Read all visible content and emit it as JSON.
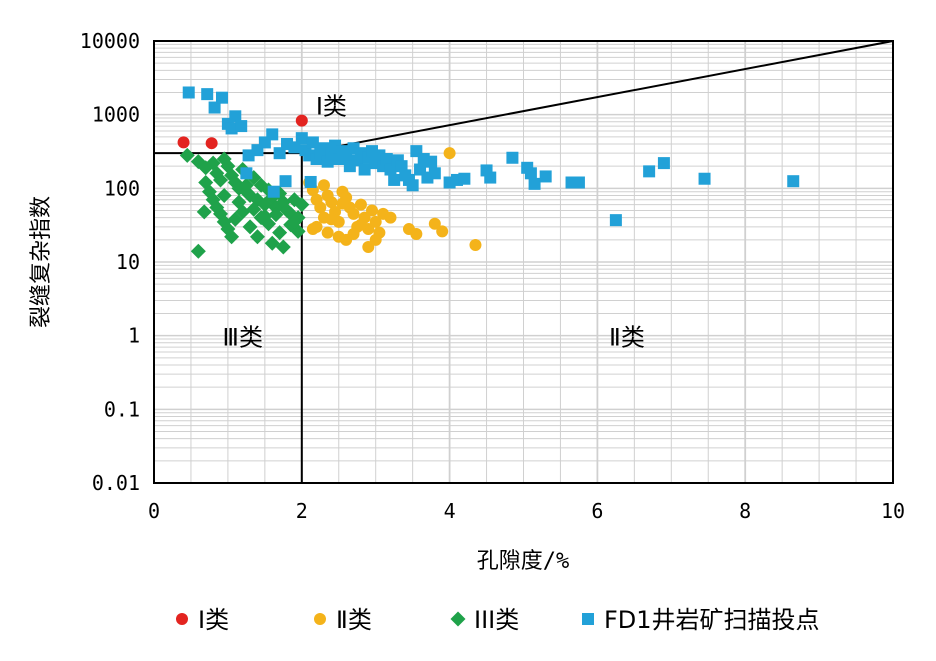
{
  "chart_data": {
    "type": "scatter",
    "xlabel": "孔隙度/%",
    "ylabel": "裂缝复杂指数",
    "xlim": [
      0,
      10
    ],
    "ylim": [
      0.01,
      10000
    ],
    "yscale": "log",
    "x_ticks": [
      "0",
      "2",
      "4",
      "6",
      "8",
      "10"
    ],
    "y_ticks": [
      "0.01",
      "0.1",
      "1",
      "10",
      "100",
      "1000",
      "10000"
    ],
    "grid": true,
    "legend_position": "bottom",
    "region_labels": [
      {
        "text": "Ⅰ类",
        "x": 2.4,
        "y": 1300
      },
      {
        "text": "Ⅲ类",
        "x": 1.2,
        "y": 0.95
      },
      {
        "text": "Ⅱ类",
        "x": 6.4,
        "y": 0.95
      }
    ],
    "boundaries": {
      "vertical_x": 2,
      "horizontal_y": 300,
      "diagonal": [
        [
          2,
          300
        ],
        [
          10,
          10000
        ]
      ]
    },
    "colors": {
      "series_I": "#e32420",
      "series_II": "#f4b31a",
      "series_III": "#1fa24a",
      "series_FD1": "#22a1d8",
      "grid": "#d0d0d0",
      "axis": "#000000"
    },
    "series": [
      {
        "name": "Ⅰ类",
        "marker": "circle",
        "points": [
          [
            0.4,
            420
          ],
          [
            0.78,
            410
          ],
          [
            2.0,
            830
          ]
        ]
      },
      {
        "name": "Ⅱ类",
        "marker": "circle",
        "points": [
          [
            2.1,
            120
          ],
          [
            2.15,
            95
          ],
          [
            2.2,
            70
          ],
          [
            2.25,
            55
          ],
          [
            2.3,
            40
          ],
          [
            2.35,
            80
          ],
          [
            2.4,
            65
          ],
          [
            2.45,
            48
          ],
          [
            2.5,
            35
          ],
          [
            2.55,
            90
          ],
          [
            2.6,
            75
          ],
          [
            2.65,
            55
          ],
          [
            2.7,
            45
          ],
          [
            2.75,
            30
          ],
          [
            2.8,
            60
          ],
          [
            2.85,
            40
          ],
          [
            2.9,
            28
          ],
          [
            2.95,
            50
          ],
          [
            3.0,
            35
          ],
          [
            3.05,
            25
          ],
          [
            3.1,
            45
          ],
          [
            3.2,
            40
          ],
          [
            2.2,
            30
          ],
          [
            2.35,
            25
          ],
          [
            2.5,
            22
          ],
          [
            2.6,
            20
          ],
          [
            2.9,
            16
          ],
          [
            3.45,
            28
          ],
          [
            3.55,
            24
          ],
          [
            3.8,
            33
          ],
          [
            3.9,
            26
          ],
          [
            4.0,
            300
          ],
          [
            4.35,
            17
          ],
          [
            2.3,
            110
          ],
          [
            2.15,
            28
          ],
          [
            2.7,
            24
          ],
          [
            3.0,
            20
          ],
          [
            2.4,
            38
          ],
          [
            2.8,
            32
          ],
          [
            2.55,
            62
          ]
        ]
      },
      {
        "name": "III类",
        "marker": "diamond",
        "points": [
          [
            0.45,
            280
          ],
          [
            0.6,
            230
          ],
          [
            0.7,
            190
          ],
          [
            0.8,
            220
          ],
          [
            0.85,
            160
          ],
          [
            0.9,
            130
          ],
          [
            0.95,
            250
          ],
          [
            1.0,
            200
          ],
          [
            1.05,
            150
          ],
          [
            1.1,
            120
          ],
          [
            1.15,
            100
          ],
          [
            1.2,
            180
          ],
          [
            1.25,
            90
          ],
          [
            1.3,
            80
          ],
          [
            1.35,
            140
          ],
          [
            1.4,
            70
          ],
          [
            1.45,
            110
          ],
          [
            1.5,
            60
          ],
          [
            1.55,
            95
          ],
          [
            1.6,
            75
          ],
          [
            1.65,
            55
          ],
          [
            1.7,
            85
          ],
          [
            1.75,
            65
          ],
          [
            1.8,
            50
          ],
          [
            1.85,
            45
          ],
          [
            1.9,
            70
          ],
          [
            1.95,
            40
          ],
          [
            2.0,
            60
          ],
          [
            0.7,
            120
          ],
          [
            0.75,
            90
          ],
          [
            0.8,
            70
          ],
          [
            0.85,
            55
          ],
          [
            0.9,
            45
          ],
          [
            0.95,
            35
          ],
          [
            1.0,
            28
          ],
          [
            1.1,
            38
          ],
          [
            1.2,
            48
          ],
          [
            1.3,
            30
          ],
          [
            1.4,
            22
          ],
          [
            1.5,
            42
          ],
          [
            1.6,
            18
          ],
          [
            1.7,
            25
          ],
          [
            1.75,
            16
          ],
          [
            1.85,
            32
          ],
          [
            1.95,
            26
          ],
          [
            0.6,
            14
          ],
          [
            0.68,
            48
          ],
          [
            1.05,
            22
          ],
          [
            1.15,
            65
          ],
          [
            1.35,
            52
          ],
          [
            1.55,
            33
          ],
          [
            1.65,
            44
          ],
          [
            1.25,
            110
          ],
          [
            1.45,
            40
          ],
          [
            1.9,
            35
          ],
          [
            0.95,
            80
          ]
        ]
      },
      {
        "name": "FD1井岩矿扫描投点",
        "marker": "square",
        "points": [
          [
            0.47,
            2000
          ],
          [
            0.72,
            1900
          ],
          [
            0.82,
            1250
          ],
          [
            0.92,
            1700
          ],
          [
            1.0,
            750
          ],
          [
            1.05,
            650
          ],
          [
            1.1,
            950
          ],
          [
            1.18,
            700
          ],
          [
            1.28,
            280
          ],
          [
            1.4,
            330
          ],
          [
            1.5,
            420
          ],
          [
            1.6,
            540
          ],
          [
            1.7,
            300
          ],
          [
            1.8,
            400
          ],
          [
            1.9,
            360
          ],
          [
            2.0,
            480
          ],
          [
            2.05,
            330
          ],
          [
            2.1,
            280
          ],
          [
            2.15,
            420
          ],
          [
            2.2,
            250
          ],
          [
            2.25,
            300
          ],
          [
            2.3,
            350
          ],
          [
            2.35,
            230
          ],
          [
            2.4,
            300
          ],
          [
            2.45,
            380
          ],
          [
            2.5,
            250
          ],
          [
            2.55,
            320
          ],
          [
            2.6,
            280
          ],
          [
            2.65,
            200
          ],
          [
            2.7,
            350
          ],
          [
            2.75,
            240
          ],
          [
            2.8,
            300
          ],
          [
            2.85,
            180
          ],
          [
            2.9,
            260
          ],
          [
            2.95,
            320
          ],
          [
            3.0,
            220
          ],
          [
            3.05,
            280
          ],
          [
            3.1,
            200
          ],
          [
            3.15,
            250
          ],
          [
            3.2,
            180
          ],
          [
            3.25,
            130
          ],
          [
            3.3,
            240
          ],
          [
            3.35,
            200
          ],
          [
            3.4,
            150
          ],
          [
            3.45,
            130
          ],
          [
            3.5,
            110
          ],
          [
            3.55,
            320
          ],
          [
            3.6,
            180
          ],
          [
            3.65,
            250
          ],
          [
            3.7,
            140
          ],
          [
            3.75,
            230
          ],
          [
            3.8,
            160
          ],
          [
            4.0,
            120
          ],
          [
            4.1,
            130
          ],
          [
            4.2,
            135
          ],
          [
            4.5,
            175
          ],
          [
            4.55,
            140
          ],
          [
            4.85,
            260
          ],
          [
            5.05,
            190
          ],
          [
            5.1,
            160
          ],
          [
            5.15,
            115
          ],
          [
            5.3,
            145
          ],
          [
            5.65,
            120
          ],
          [
            5.75,
            120
          ],
          [
            6.25,
            37
          ],
          [
            6.7,
            170
          ],
          [
            6.9,
            220
          ],
          [
            7.45,
            135
          ],
          [
            8.65,
            125
          ],
          [
            1.62,
            90
          ],
          [
            1.78,
            125
          ],
          [
            2.12,
            122
          ],
          [
            1.25,
            160
          ]
        ]
      }
    ]
  }
}
